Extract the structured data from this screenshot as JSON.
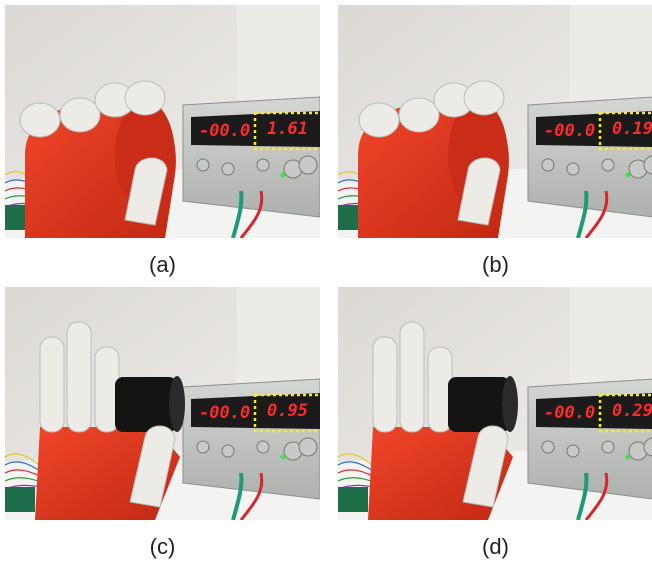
{
  "panels": [
    {
      "caption": "(a)",
      "display_left": "-00.0",
      "display_right": "1.61"
    },
    {
      "caption": "(b)",
      "display_left": "-00.0",
      "display_right": "0.19"
    },
    {
      "caption": "(c)",
      "display_left": "-00.0",
      "display_right": "0.95"
    },
    {
      "caption": "(d)",
      "display_left": "-00.0",
      "display_right": "0.29"
    }
  ]
}
